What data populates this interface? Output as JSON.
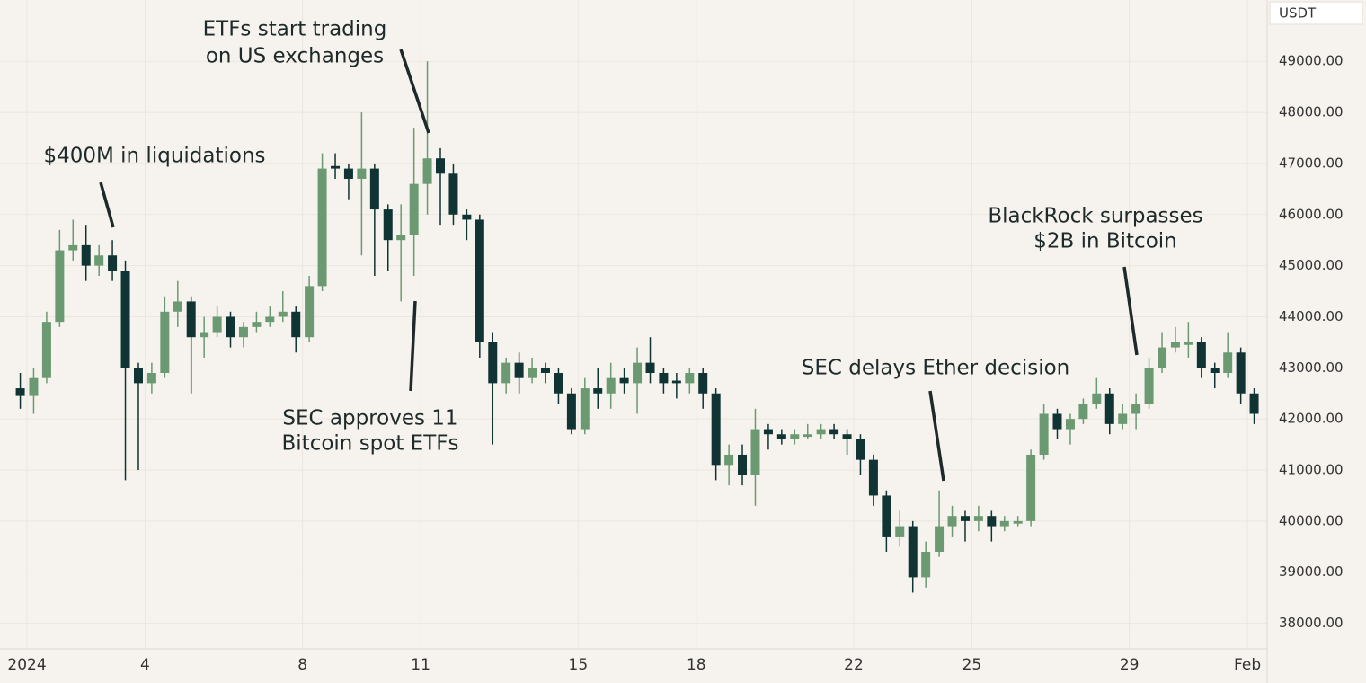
{
  "chart_data": {
    "type": "candlestick",
    "unit": "USDT",
    "annotations": [
      "$400M in liquidations",
      "ETFs start trading",
      "on US exchanges",
      "SEC approves 11",
      "Bitcoin spot ETFs",
      "SEC delays Ether decision",
      "BlackRock surpasses",
      "$2B in Bitcoin"
    ],
    "up_color": "#6b9a72",
    "down_color": "#0f3433",
    "grid": true,
    "xlim": [
      -0.685,
      31.5
    ],
    "xticks": [
      {
        "value": 0,
        "label": "2024"
      },
      {
        "value": 3,
        "label": "4"
      },
      {
        "value": 7,
        "label": "8"
      },
      {
        "value": 10,
        "label": "11"
      },
      {
        "value": 14,
        "label": "15"
      },
      {
        "value": 17,
        "label": "18"
      },
      {
        "value": 21,
        "label": "22"
      },
      {
        "value": 24,
        "label": "25"
      },
      {
        "value": 28,
        "label": "29"
      },
      {
        "value": 31,
        "label": "Feb"
      }
    ],
    "ylim": [
      37500,
      50200
    ],
    "yticks": [
      {
        "value": 38000,
        "label": "38000.00"
      },
      {
        "value": 39000,
        "label": "39000.00"
      },
      {
        "value": 40000,
        "label": "40000.00"
      },
      {
        "value": 41000,
        "label": "41000.00"
      },
      {
        "value": 42000,
        "label": "42000.00"
      },
      {
        "value": 43000,
        "label": "43000.00"
      },
      {
        "value": 44000,
        "label": "44000.00"
      },
      {
        "value": 45000,
        "label": "45000.00"
      },
      {
        "value": 46000,
        "label": "46000.00"
      },
      {
        "value": 47000,
        "label": "47000.00"
      },
      {
        "value": 48000,
        "label": "48000.00"
      },
      {
        "value": 49000,
        "label": "49000.00"
      }
    ],
    "x": [
      -0.17,
      0.17,
      0.5,
      0.83,
      1.17,
      1.5,
      1.83,
      2.17,
      2.5,
      2.83,
      3.17,
      3.5,
      3.83,
      4.17,
      4.5,
      4.83,
      5.17,
      5.5,
      5.83,
      6.17,
      6.5,
      6.83,
      7.17,
      7.5,
      7.83,
      8.17,
      8.5,
      8.83,
      9.17,
      9.5,
      9.83,
      10.17,
      10.5,
      10.83,
      11.17,
      11.5,
      11.83,
      12.17,
      12.5,
      12.83,
      13.17,
      13.5,
      13.83,
      14.17,
      14.5,
      14.83,
      15.17,
      15.5,
      15.83,
      16.17,
      16.5,
      16.83,
      17.17,
      17.5,
      17.83,
      18.17,
      18.5,
      18.83,
      19.17,
      19.5,
      19.83,
      20.17,
      20.5,
      20.83,
      21.17,
      21.5,
      21.83,
      22.17,
      22.5,
      22.83,
      23.17,
      23.5,
      23.83,
      24.17,
      24.5,
      24.83,
      25.17,
      25.5,
      25.83,
      26.17,
      26.5,
      26.83,
      27.17,
      27.5,
      27.83,
      28.17,
      28.5,
      28.83,
      29.17,
      29.5,
      29.83,
      30.17,
      30.5,
      30.83,
      31.17
    ],
    "open": [
      42600,
      42450,
      42800,
      43900,
      45300,
      45400,
      45000,
      45200,
      44900,
      43000,
      42700,
      42900,
      44100,
      44300,
      43600,
      43700,
      44000,
      43600,
      43800,
      43900,
      44000,
      44100,
      43600,
      44600,
      46950,
      46900,
      46700,
      46900,
      46100,
      45500,
      45600,
      46600,
      47100,
      46800,
      46000,
      45900,
      43500,
      42700,
      43100,
      42800,
      43000,
      42900,
      42500,
      41800,
      42600,
      42500,
      42800,
      42700,
      43100,
      42900,
      42750,
      42700,
      42900,
      42500,
      41100,
      41300,
      40900,
      41800,
      41700,
      41600,
      41650,
      41700,
      41800,
      41700,
      41600,
      41200,
      40500,
      39700,
      39900,
      38900,
      39400,
      39900,
      40100,
      40000,
      40100,
      39900,
      39950,
      40000,
      41300,
      42100,
      41800,
      42000,
      42300,
      42500,
      41900,
      42100,
      42300,
      43000,
      43400,
      43450,
      43500,
      43000,
      42900,
      43300,
      42500
    ],
    "high": [
      42900,
      43000,
      44100,
      45700,
      45900,
      45800,
      45400,
      45500,
      45100,
      43100,
      43100,
      44400,
      44700,
      44400,
      44000,
      44200,
      44100,
      43900,
      44100,
      44200,
      44500,
      44200,
      44800,
      47200,
      47200,
      47000,
      48000,
      47000,
      46200,
      46200,
      47700,
      49000,
      47300,
      47000,
      46100,
      46000,
      43700,
      43200,
      43300,
      43200,
      43100,
      43000,
      42600,
      42800,
      43000,
      43100,
      43000,
      43400,
      43600,
      43000,
      42900,
      43000,
      43000,
      42600,
      41500,
      41500,
      42200,
      41900,
      41800,
      41800,
      41900,
      41900,
      41900,
      41800,
      41700,
      41300,
      40600,
      40200,
      40000,
      39600,
      40600,
      40300,
      40200,
      40300,
      40200,
      40100,
      40100,
      41400,
      42300,
      42200,
      42100,
      42400,
      42800,
      42600,
      42300,
      42500,
      43200,
      43700,
      43800,
      43900,
      43600,
      43100,
      43700,
      43400,
      42600
    ],
    "low": [
      42200,
      42100,
      42700,
      43800,
      45100,
      44700,
      44800,
      44700,
      40800,
      41000,
      42500,
      42800,
      43800,
      42500,
      43200,
      43600,
      43400,
      43400,
      43700,
      43800,
      43900,
      43300,
      43500,
      44500,
      46700,
      46300,
      45200,
      44800,
      44900,
      44300,
      44800,
      46000,
      45800,
      45800,
      45500,
      43200,
      41500,
      42500,
      42500,
      42700,
      42700,
      42300,
      41700,
      41700,
      42200,
      42200,
      42500,
      42100,
      42700,
      42500,
      42400,
      42500,
      42200,
      40800,
      40700,
      40700,
      40300,
      41400,
      41500,
      41500,
      41600,
      41600,
      41600,
      41300,
      40900,
      40300,
      39400,
      39500,
      38600,
      38700,
      39300,
      39700,
      39600,
      39800,
      39600,
      39800,
      39900,
      39900,
      41200,
      41600,
      41500,
      41900,
      42200,
      41700,
      41800,
      41800,
      42200,
      42900,
      43300,
      43200,
      42800,
      42600,
      42800,
      42300,
      41900
    ],
    "close": [
      42450,
      42800,
      43900,
      45300,
      45400,
      45000,
      45200,
      44900,
      43000,
      42700,
      42900,
      44100,
      44300,
      43600,
      43700,
      44000,
      43600,
      43800,
      43900,
      44000,
      44100,
      43600,
      44600,
      46900,
      46900,
      46700,
      46900,
      46100,
      45500,
      45600,
      46600,
      47100,
      46800,
      46000,
      45900,
      43500,
      42700,
      43100,
      42800,
      43000,
      42900,
      42500,
      41800,
      42600,
      42500,
      42800,
      42700,
      43100,
      42900,
      42700,
      42700,
      42900,
      42500,
      41100,
      41300,
      40900,
      41800,
      41700,
      41600,
      41700,
      41700,
      41800,
      41700,
      41600,
      41200,
      40500,
      39700,
      39900,
      38900,
      39400,
      39900,
      40100,
      40000,
      40100,
      39900,
      40000,
      40000,
      41300,
      42100,
      41800,
      42000,
      42300,
      42500,
      41900,
      42100,
      42300,
      43000,
      43400,
      43500,
      43500,
      43000,
      42900,
      43300,
      42500,
      42100
    ]
  }
}
